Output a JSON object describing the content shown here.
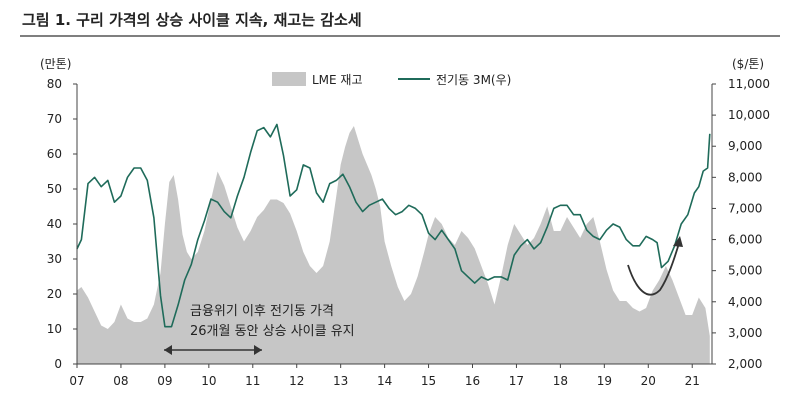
{
  "title": "그림 1. 구리 가격의 상승 사이클 지속, 재고는 감소세",
  "left_unit": "(만톤)",
  "right_unit": "($/톤)",
  "annotation_line1": "금융위기 이후 전기동 가격",
  "annotation_line2": "26개월 동안 상승 사이클 유지",
  "colors": {
    "inventory": "#c6c6c6",
    "price": "#1f6b5a",
    "accent_line": "#7ea89a"
  },
  "chart_data": {
    "type": "area+line",
    "x_ticks": [
      "07",
      "08",
      "09",
      "10",
      "11",
      "12",
      "13",
      "14",
      "15",
      "16",
      "17",
      "18",
      "19",
      "20",
      "21"
    ],
    "xlim": [
      2007.0,
      2021.45
    ],
    "y_left": {
      "label": "(만톤)",
      "ylim": [
        0,
        80
      ],
      "ticks": [
        0,
        10,
        20,
        30,
        40,
        50,
        60,
        70,
        80
      ]
    },
    "y_right": {
      "label": "($/톤)",
      "ylim": [
        2000,
        11000
      ],
      "ticks": [
        "2,000",
        "3,000",
        "4,000",
        "5,000",
        "6,000",
        "7,000",
        "8,000",
        "9,000",
        "10,000",
        "11,000"
      ]
    },
    "legend": {
      "placement": "top-center"
    },
    "series": [
      {
        "name": "LME 재고",
        "kind": "area",
        "axis": "left",
        "x": [
          2007.0,
          2007.1,
          2007.25,
          2007.4,
          2007.55,
          2007.7,
          2007.85,
          2008.0,
          2008.15,
          2008.3,
          2008.45,
          2008.6,
          2008.75,
          2008.9,
          2009.0,
          2009.1,
          2009.2,
          2009.3,
          2009.4,
          2009.5,
          2009.6,
          2009.75,
          2009.9,
          2010.05,
          2010.2,
          2010.35,
          2010.5,
          2010.65,
          2010.8,
          2010.95,
          2011.1,
          2011.25,
          2011.4,
          2011.55,
          2011.7,
          2011.85,
          2012.0,
          2012.15,
          2012.3,
          2012.45,
          2012.6,
          2012.75,
          2012.9,
          2013.0,
          2013.1,
          2013.2,
          2013.3,
          2013.4,
          2013.5,
          2013.6,
          2013.7,
          2013.8,
          2013.9,
          2014.0,
          2014.15,
          2014.3,
          2014.45,
          2014.6,
          2014.75,
          2014.9,
          2015.0,
          2015.15,
          2015.3,
          2015.45,
          2015.6,
          2015.75,
          2015.9,
          2016.05,
          2016.2,
          2016.35,
          2016.5,
          2016.65,
          2016.8,
          2016.95,
          2017.1,
          2017.25,
          2017.4,
          2017.55,
          2017.7,
          2017.85,
          2018.0,
          2018.15,
          2018.3,
          2018.45,
          2018.6,
          2018.75,
          2018.9,
          2019.05,
          2019.2,
          2019.35,
          2019.5,
          2019.65,
          2019.8,
          2019.95,
          2020.1,
          2020.25,
          2020.4,
          2020.55,
          2020.7,
          2020.85,
          2021.0,
          2021.15,
          2021.3,
          2021.4
        ],
        "values": [
          21,
          22,
          19,
          15,
          11,
          10,
          12,
          17,
          13,
          12,
          12,
          13,
          17,
          26,
          40,
          52,
          54,
          47,
          37,
          32,
          30,
          32,
          38,
          47,
          55,
          51,
          45,
          39,
          35,
          38,
          42,
          44,
          47,
          47,
          46,
          43,
          38,
          32,
          28,
          26,
          28,
          35,
          48,
          57,
          62,
          66,
          68,
          64,
          60,
          57,
          54,
          50,
          45,
          35,
          28,
          22,
          18,
          20,
          25,
          32,
          37,
          42,
          40,
          36,
          34,
          38,
          36,
          33,
          28,
          23,
          17,
          25,
          34,
          40,
          37,
          34,
          36,
          40,
          45,
          38,
          38,
          42,
          39,
          36,
          40,
          42,
          35,
          27,
          21,
          18,
          18,
          16,
          15,
          16,
          21,
          24,
          28,
          24,
          19,
          14,
          14,
          19,
          16,
          8
        ]
      },
      {
        "name": "전기동 3M(우)",
        "kind": "line",
        "axis": "right",
        "x": [
          2007.0,
          2007.1,
          2007.25,
          2007.4,
          2007.55,
          2007.7,
          2007.85,
          2008.0,
          2008.15,
          2008.3,
          2008.45,
          2008.6,
          2008.75,
          2008.9,
          2009.0,
          2009.15,
          2009.3,
          2009.45,
          2009.6,
          2009.75,
          2009.9,
          2010.05,
          2010.2,
          2010.35,
          2010.5,
          2010.65,
          2010.8,
          2010.95,
          2011.1,
          2011.25,
          2011.4,
          2011.55,
          2011.7,
          2011.85,
          2012.0,
          2012.15,
          2012.3,
          2012.45,
          2012.6,
          2012.75,
          2012.9,
          2013.05,
          2013.2,
          2013.35,
          2013.5,
          2013.65,
          2013.8,
          2013.95,
          2014.1,
          2014.25,
          2014.4,
          2014.55,
          2014.7,
          2014.85,
          2015.0,
          2015.15,
          2015.3,
          2015.45,
          2015.6,
          2015.75,
          2015.9,
          2016.05,
          2016.2,
          2016.35,
          2016.5,
          2016.65,
          2016.8,
          2016.95,
          2017.1,
          2017.25,
          2017.4,
          2017.55,
          2017.7,
          2017.85,
          2018.0,
          2018.15,
          2018.3,
          2018.45,
          2018.6,
          2018.75,
          2018.9,
          2019.05,
          2019.2,
          2019.35,
          2019.5,
          2019.65,
          2019.8,
          2019.95,
          2020.1,
          2020.2,
          2020.3,
          2020.45,
          2020.6,
          2020.75,
          2020.9,
          2021.05,
          2021.15,
          2021.25,
          2021.35,
          2021.4
        ],
        "values": [
          5700,
          6000,
          7800,
          8000,
          7700,
          7900,
          7200,
          7400,
          8000,
          8300,
          8300,
          7900,
          6700,
          4200,
          3200,
          3200,
          3900,
          4700,
          5200,
          6000,
          6600,
          7300,
          7200,
          6900,
          6700,
          7400,
          8000,
          8800,
          9500,
          9600,
          9300,
          9700,
          8700,
          7400,
          7600,
          8400,
          8300,
          7500,
          7200,
          7800,
          7900,
          8100,
          7700,
          7200,
          6900,
          7100,
          7200,
          7300,
          7000,
          6800,
          6900,
          7100,
          7000,
          6800,
          6200,
          6000,
          6300,
          6000,
          5700,
          5000,
          4800,
          4600,
          4800,
          4700,
          4800,
          4800,
          4700,
          5500,
          5800,
          6000,
          5700,
          5900,
          6400,
          7000,
          7100,
          7100,
          6800,
          6800,
          6300,
          6100,
          6000,
          6300,
          6500,
          6400,
          6000,
          5800,
          5800,
          6100,
          6000,
          5900,
          5100,
          5300,
          5800,
          6500,
          6800,
          7500,
          7700,
          8200,
          8300,
          9400
        ]
      }
    ]
  }
}
